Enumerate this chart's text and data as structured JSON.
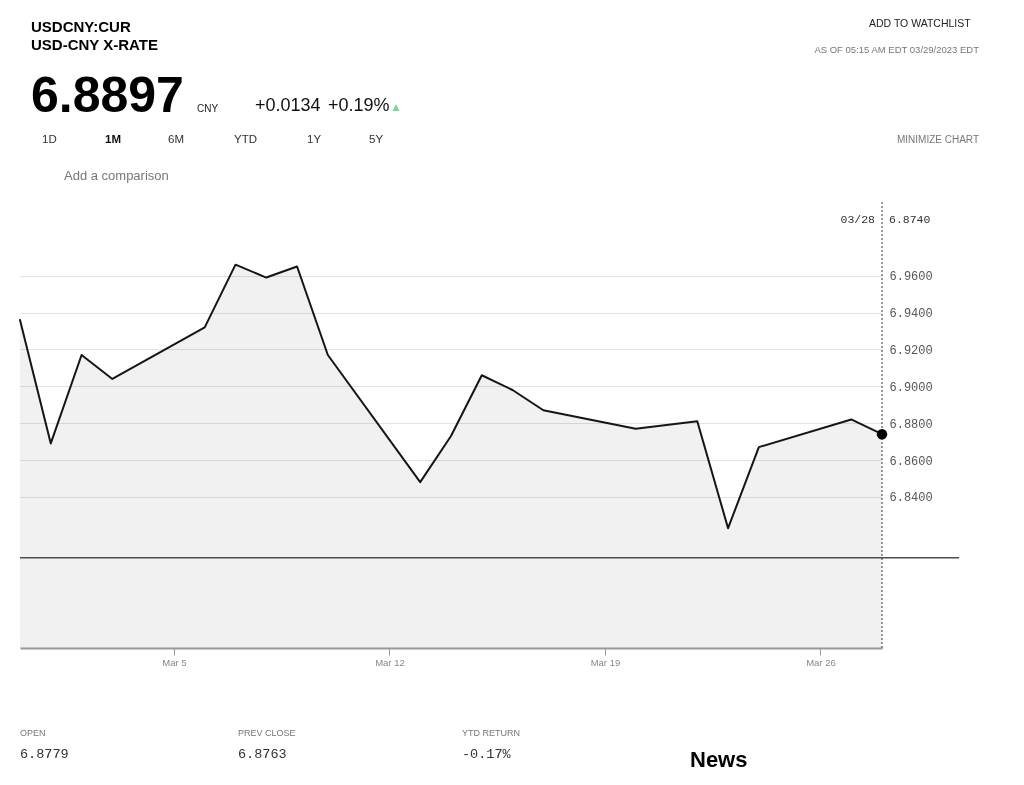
{
  "chart_data": {
    "type": "area",
    "title": "USDCNY:CUR",
    "subtitle": "USD-CNY X-RATE",
    "x": [
      "2023-02-28",
      "2023-03-01",
      "2023-03-02",
      "2023-03-03",
      "2023-03-06",
      "2023-03-07",
      "2023-03-08",
      "2023-03-09",
      "2023-03-10",
      "2023-03-13",
      "2023-03-14",
      "2023-03-15",
      "2023-03-16",
      "2023-03-17",
      "2023-03-20",
      "2023-03-22",
      "2023-03-23",
      "2023-03-24",
      "2023-03-27",
      "2023-03-28"
    ],
    "series": [
      {
        "color": "#151515",
        "values": [
          6.936,
          6.869,
          6.917,
          6.904,
          6.932,
          6.966,
          6.959,
          6.965,
          6.917,
          6.848,
          6.873,
          6.906,
          6.898,
          6.887,
          6.877,
          6.881,
          6.823,
          6.867,
          6.882,
          6.874
        ]
      },
      {
        "type": "scatter",
        "x": [
          "2023-03-28"
        ],
        "color": "#000000",
        "values": [
          6.874
        ]
      }
    ],
    "xlim": [
      "2023-02-28",
      "2023-03-28"
    ],
    "xticks": [
      {
        "value": "2023-03-05",
        "label": "Mar 5"
      },
      {
        "value": "2023-03-12",
        "label": "Mar 12"
      },
      {
        "value": "2023-03-19",
        "label": "Mar 19"
      },
      {
        "value": "2023-03-26",
        "label": "Mar 26"
      }
    ],
    "ylim": [
      6.758,
      7.0
    ],
    "yticks": [
      {
        "value": 6.84,
        "label": "6.8400"
      },
      {
        "value": 6.86,
        "label": "6.8600"
      },
      {
        "value": 6.88,
        "label": "6.8800"
      },
      {
        "value": 6.9,
        "label": "6.9000"
      },
      {
        "value": 6.92,
        "label": "6.9200"
      },
      {
        "value": 6.94,
        "label": "6.9400"
      },
      {
        "value": 6.96,
        "label": "6.9600"
      }
    ],
    "grid": "y",
    "ref_lines": [
      {
        "axis": "y",
        "value": 6.807,
        "color": "#4d4d4d"
      },
      {
        "axis": "x",
        "value": "2023-03-28",
        "label": "03/28",
        "line_style": "dotted",
        "color": "#333333"
      }
    ],
    "annotations": [
      "6.8897",
      "CNY",
      "+0.0134",
      "+0.19%",
      "▲",
      "ADD TO WATCHLIST",
      "AS OF 05:15 AM EDT 03/29/2023 EDT",
      "1D",
      "1M",
      "6M",
      "YTD",
      "1Y",
      "5Y",
      "MINIMIZE CHART",
      "Add a comparison",
      "6.8740",
      "OPEN",
      "6.8779",
      "PREV CLOSE",
      "6.8763",
      "YTD RETURN",
      "-0.17%",
      "News"
    ]
  }
}
